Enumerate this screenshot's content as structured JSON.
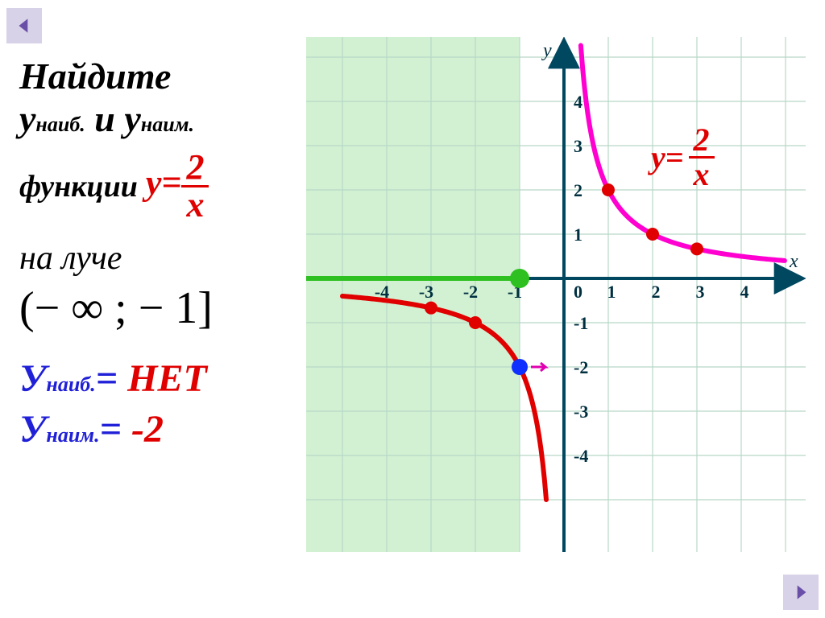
{
  "nav": {
    "prev_color": "#6a4fa8",
    "next_color": "#6a4fa8",
    "bg": "#d8d2e8"
  },
  "task": {
    "line1_a": "Найдите",
    "line2_a": "у",
    "line2_sub1": "наиб.",
    "line2_b": "и у",
    "line2_sub2": "наим.",
    "line3_a": "функции",
    "func_label": "у=",
    "func_num": "2",
    "func_den": "х",
    "ray_label": "на луче",
    "interval": "(− ∞ ; − 1]"
  },
  "answers": {
    "r1_a": "У",
    "r1_sub": "наиб.",
    "r1_eq": "=",
    "r1_val": "НЕТ",
    "r2_a": "У",
    "r2_sub": "наим.",
    "r2_eq": "=",
    "r2_val": "-2"
  },
  "chart": {
    "type": "hyperbola",
    "function": "y = 2/x",
    "xlim": [
      -5,
      5
    ],
    "ylim": [
      -5,
      5
    ],
    "xticks": [
      -4,
      -3,
      -2,
      -1,
      0,
      1,
      2,
      3,
      4
    ],
    "yticks": [
      -4,
      -3,
      -2,
      -1,
      1,
      2,
      3,
      4
    ],
    "axis_color": "#004860",
    "axis_width": 4,
    "grid_color": "#b8d8c8",
    "grid_bg": "#f2fff2",
    "tick_label_color": "#003040",
    "tick_label_fontsize": 22,
    "highlight_region": {
      "x_to": -1,
      "color": "#b4e8b4",
      "opacity": 0.6
    },
    "green_ray": {
      "y": 0,
      "x_from": -5,
      "x_to": -1,
      "color": "#2dc020",
      "width": 6,
      "endpoint_filled": true
    },
    "curve_left": {
      "color": "#e00000",
      "width": 6,
      "points_sample": [
        [
          -5,
          -0.4
        ],
        [
          -4,
          -0.5
        ],
        [
          -3,
          -0.667
        ],
        [
          -2,
          -1
        ],
        [
          -1.2,
          -1.667
        ],
        [
          -1,
          -2
        ],
        [
          -0.7,
          -2.857
        ],
        [
          -0.5,
          -4
        ],
        [
          -0.42,
          -4.76
        ]
      ]
    },
    "curve_right": {
      "color": "#ff00d0",
      "width": 6,
      "points_sample": [
        [
          0.42,
          4.76
        ],
        [
          0.5,
          4
        ],
        [
          0.7,
          2.857
        ],
        [
          1,
          2
        ],
        [
          1.5,
          1.333
        ],
        [
          2,
          1
        ],
        [
          3,
          0.667
        ],
        [
          4,
          0.5
        ],
        [
          5,
          0.4
        ]
      ]
    },
    "markers_red": {
      "color": "#e00000",
      "r": 8,
      "points": [
        [
          -3,
          -0.667
        ],
        [
          -2,
          -1
        ],
        [
          1,
          2
        ],
        [
          2,
          1
        ],
        [
          3,
          0.667
        ]
      ]
    },
    "marker_blue": {
      "color": "#1030ff",
      "r": 10,
      "point": [
        -1,
        -2
      ]
    },
    "marker_green": {
      "color": "#2dc020",
      "r": 12,
      "point": [
        -1,
        0
      ]
    },
    "axis_labels": {
      "x": "х",
      "y": "у",
      "font": "italic 26px serif",
      "color": "#003040"
    },
    "graph_func_label": {
      "prefix": "у=",
      "num": "2",
      "den": "х",
      "color": "#e00000",
      "fontsize": 40
    }
  }
}
